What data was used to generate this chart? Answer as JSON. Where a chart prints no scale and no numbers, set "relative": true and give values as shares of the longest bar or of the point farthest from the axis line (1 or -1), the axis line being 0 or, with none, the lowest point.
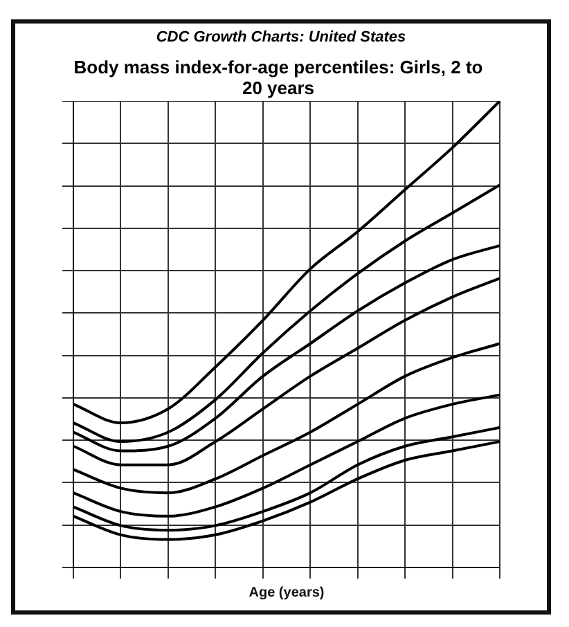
{
  "chart_data": {
    "type": "line",
    "title": "CDC Growth Charts: United States",
    "subtitle": "Body mass index-for-age percentiles: Girls, 2 to 20 years",
    "xlabel": "Age (years)",
    "relative": true,
    "grid": true,
    "legend": false,
    "marker": "none",
    "line_style": "solid",
    "categories": [
      null,
      null,
      null,
      null,
      null,
      null,
      null,
      null,
      null,
      null
    ],
    "series": [
      {
        "color": "#000000",
        "values": [
          0.35,
          0.31,
          0.34,
          0.43,
          0.53,
          0.64,
          0.72,
          0.81,
          0.9,
          1
        ]
      },
      {
        "color": "#000000",
        "values": [
          0.31,
          0.27,
          0.29,
          0.36,
          0.46,
          0.55,
          0.63,
          0.7,
          0.76,
          0.82
        ]
      },
      {
        "color": "#000000",
        "values": [
          0.29,
          0.25,
          0.26,
          0.32,
          0.41,
          0.48,
          0.55,
          0.61,
          0.66,
          0.69
        ]
      },
      {
        "color": "#000000",
        "values": [
          0.26,
          0.22,
          0.22,
          0.27,
          0.34,
          0.41,
          0.47,
          0.53,
          0.58,
          0.62
        ]
      },
      {
        "color": "#000000",
        "values": [
          0.21,
          0.17,
          0.16,
          0.19,
          0.24,
          0.29,
          0.35,
          0.41,
          0.45,
          0.48
        ]
      },
      {
        "color": "#000000",
        "values": [
          0.16,
          0.12,
          0.11,
          0.13,
          0.17,
          0.22,
          0.27,
          0.32,
          0.35,
          0.37
        ]
      },
      {
        "color": "#000000",
        "values": [
          0.13,
          0.09,
          0.08,
          0.09,
          0.12,
          0.16,
          0.22,
          0.26,
          0.28,
          0.3
        ]
      },
      {
        "color": "#000000",
        "values": [
          0.11,
          0.07,
          0.06,
          0.07,
          0.1,
          0.14,
          0.19,
          0.23,
          0.25,
          0.27
        ]
      }
    ]
  }
}
